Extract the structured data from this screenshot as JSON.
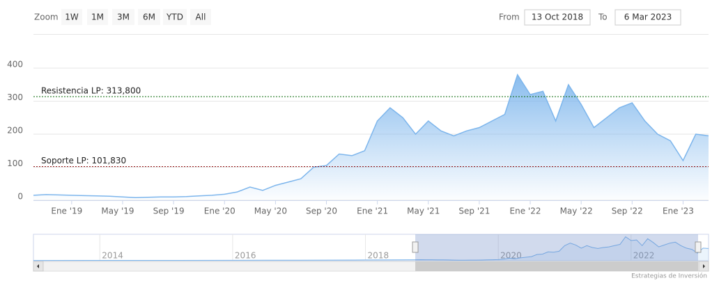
{
  "chart_data": {
    "type": "area",
    "range_selector": {
      "label": "Zoom",
      "buttons": [
        "1W",
        "1M",
        "3M",
        "6M",
        "YTD",
        "All"
      ],
      "from_label": "From",
      "from": "13 Oct 2018",
      "to_label": "To",
      "to": "6 Mar 2023"
    },
    "x": [
      "2018-10",
      "2018-11",
      "2018-12",
      "2019-01",
      "2019-02",
      "2019-03",
      "2019-04",
      "2019-05",
      "2019-06",
      "2019-07",
      "2019-08",
      "2019-09",
      "2019-10",
      "2019-11",
      "2019-12",
      "2020-01",
      "2020-02",
      "2020-03",
      "2020-04",
      "2020-05",
      "2020-06",
      "2020-07",
      "2020-08",
      "2020-09",
      "2020-10",
      "2020-11",
      "2020-12",
      "2021-01",
      "2021-02",
      "2021-03",
      "2021-04",
      "2021-05",
      "2021-06",
      "2021-07",
      "2021-08",
      "2021-09",
      "2021-10",
      "2021-11",
      "2021-12",
      "2022-01",
      "2022-02",
      "2022-03",
      "2022-04",
      "2022-05",
      "2022-06",
      "2022-07",
      "2022-08",
      "2022-09",
      "2022-10",
      "2022-11",
      "2022-12",
      "2023-01",
      "2023-02",
      "2023-03"
    ],
    "values": [
      15,
      17,
      16,
      15,
      14,
      13,
      12,
      10,
      8,
      9,
      10,
      10,
      11,
      13,
      15,
      18,
      25,
      40,
      30,
      45,
      55,
      65,
      100,
      105,
      140,
      135,
      150,
      240,
      280,
      250,
      200,
      240,
      210,
      195,
      210,
      220,
      240,
      260,
      380,
      320,
      330,
      240,
      350,
      290,
      220,
      250,
      280,
      295,
      240,
      200,
      180,
      120,
      200,
      195
    ],
    "color": "#7cb5ec",
    "xlim": [
      "2018-10",
      "2023-03"
    ],
    "xticks": [
      {
        "value": "2019-01",
        "label": "Ene '19"
      },
      {
        "value": "2019-05",
        "label": "May '19"
      },
      {
        "value": "2019-09",
        "label": "Sep '19"
      },
      {
        "value": "2020-01",
        "label": "Ene '20"
      },
      {
        "value": "2020-05",
        "label": "May '20"
      },
      {
        "value": "2020-09",
        "label": "Sep '20"
      },
      {
        "value": "2021-01",
        "label": "Ene '21"
      },
      {
        "value": "2021-05",
        "label": "May '21"
      },
      {
        "value": "2021-09",
        "label": "Sep '21"
      },
      {
        "value": "2022-01",
        "label": "Ene '22"
      },
      {
        "value": "2022-05",
        "label": "May '22"
      },
      {
        "value": "2022-09",
        "label": "Sep '22"
      },
      {
        "value": "2023-01",
        "label": "Ene '23"
      }
    ],
    "ylim": [
      0,
      500
    ],
    "yticks": [
      0,
      100,
      200,
      300,
      400
    ],
    "grid": true,
    "plot_lines": [
      {
        "value": 313.8,
        "label": "Resistencia LP: 313,800",
        "color": "#006400"
      },
      {
        "value": 101.83,
        "label": "Soporte LP: 101,830",
        "color": "#8b0000"
      }
    ],
    "navigator": {
      "x": [
        "2013-01",
        "2014-01",
        "2015-01",
        "2016-01",
        "2017-01",
        "2018-01"
      ],
      "values": [
        4,
        5,
        6,
        7,
        9,
        12
      ],
      "xlim": [
        "2013-01",
        "2023-03"
      ],
      "ylim": [
        0,
        420
      ],
      "xticks": [
        {
          "value": "2014-01",
          "label": "2014"
        },
        {
          "value": "2016-01",
          "label": "2016"
        },
        {
          "value": "2018-01",
          "label": "2018"
        },
        {
          "value": "2020-01",
          "label": "2020"
        },
        {
          "value": "2022-01",
          "label": "2022"
        }
      ]
    },
    "credits": "Estrategias de Inversión"
  }
}
